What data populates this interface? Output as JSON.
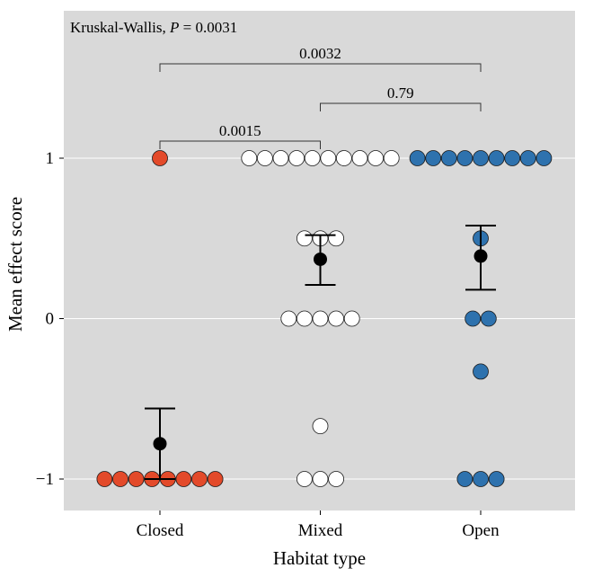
{
  "chart_data": {
    "type": "scatter",
    "xlabel": "Habitat type",
    "ylabel": "Mean effect score",
    "categories": [
      "Closed",
      "Mixed",
      "Open"
    ],
    "yticks": [
      -1,
      0,
      1
    ],
    "ytick_labels": [
      "−1",
      "0",
      "1"
    ],
    "ylim": [
      -1.2,
      1.9
    ],
    "grid": true,
    "annotation": {
      "prefix": "Kruskal-Wallis, ",
      "italic": "P",
      "suffix": " = 0.0031"
    },
    "series": [
      {
        "category": "Closed",
        "color": "#e34a2a",
        "points": [
          {
            "y": 1,
            "count": 1
          },
          {
            "y": -1,
            "count": 8
          }
        ],
        "mean": -0.78,
        "err_low": -1.0,
        "err_high": -0.56
      },
      {
        "category": "Mixed",
        "color": "#ffffff",
        "points": [
          {
            "y": 1,
            "count": 10
          },
          {
            "y": 0.5,
            "count": 3
          },
          {
            "y": 0,
            "count": 5
          },
          {
            "y": -0.67,
            "count": 1
          },
          {
            "y": -1,
            "count": 3
          }
        ],
        "mean": 0.37,
        "err_low": 0.21,
        "err_high": 0.52
      },
      {
        "category": "Open",
        "color": "#2e72ae",
        "points": [
          {
            "y": 1,
            "count": 9
          },
          {
            "y": 0.5,
            "count": 1
          },
          {
            "y": 0,
            "count": 2
          },
          {
            "y": -0.33,
            "count": 1
          },
          {
            "y": -1,
            "count": 3
          }
        ],
        "mean": 0.39,
        "err_low": 0.18,
        "err_high": 0.58
      }
    ],
    "comparisons": [
      {
        "from": "Closed",
        "to": "Mixed",
        "label": "0.0015",
        "level": 1
      },
      {
        "from": "Mixed",
        "to": "Open",
        "label": "0.79",
        "level": 2
      },
      {
        "from": "Closed",
        "to": "Open",
        "label": "0.0032",
        "level": 3
      }
    ],
    "colors": {
      "panel": "#d9d9d9",
      "grid": "#ffffff",
      "mean": "#000000"
    }
  }
}
